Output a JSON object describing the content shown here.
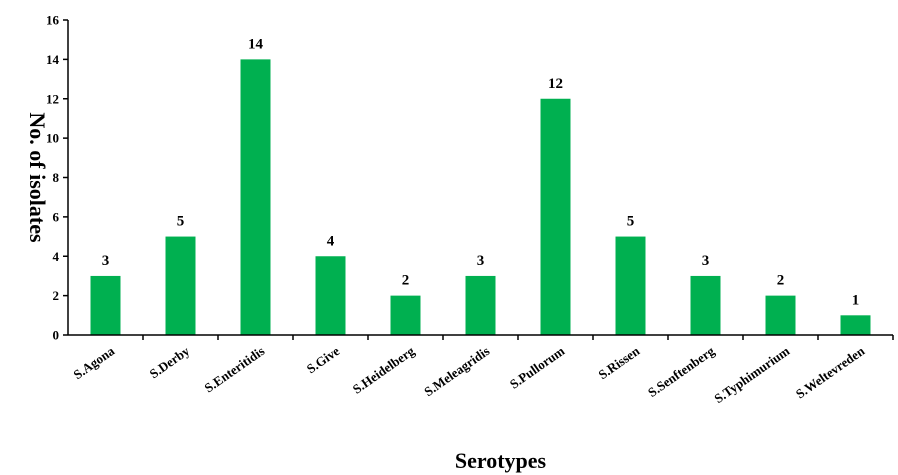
{
  "chart_data": {
    "type": "bar",
    "title": "",
    "xlabel": "Serotypes",
    "ylabel": "No. of isolates",
    "ylim": [
      0,
      16
    ],
    "yticks": [
      0,
      2,
      4,
      6,
      8,
      10,
      12,
      14,
      16
    ],
    "categories": [
      "S.Agona",
      "S.Derby",
      "S.Enteritidis",
      "S.Give",
      "S.Heidelberg",
      "S.Meleagridis",
      "S.Pullorum",
      "S.Rissen",
      "S.Senftenberg",
      "S.Typhimurium",
      "S.Weltevreden"
    ],
    "values": [
      3,
      5,
      14,
      4,
      2,
      3,
      12,
      5,
      3,
      2,
      1
    ],
    "data_labels_shown": true,
    "bar_color": "#00b050",
    "grid": false,
    "legend": "none"
  }
}
